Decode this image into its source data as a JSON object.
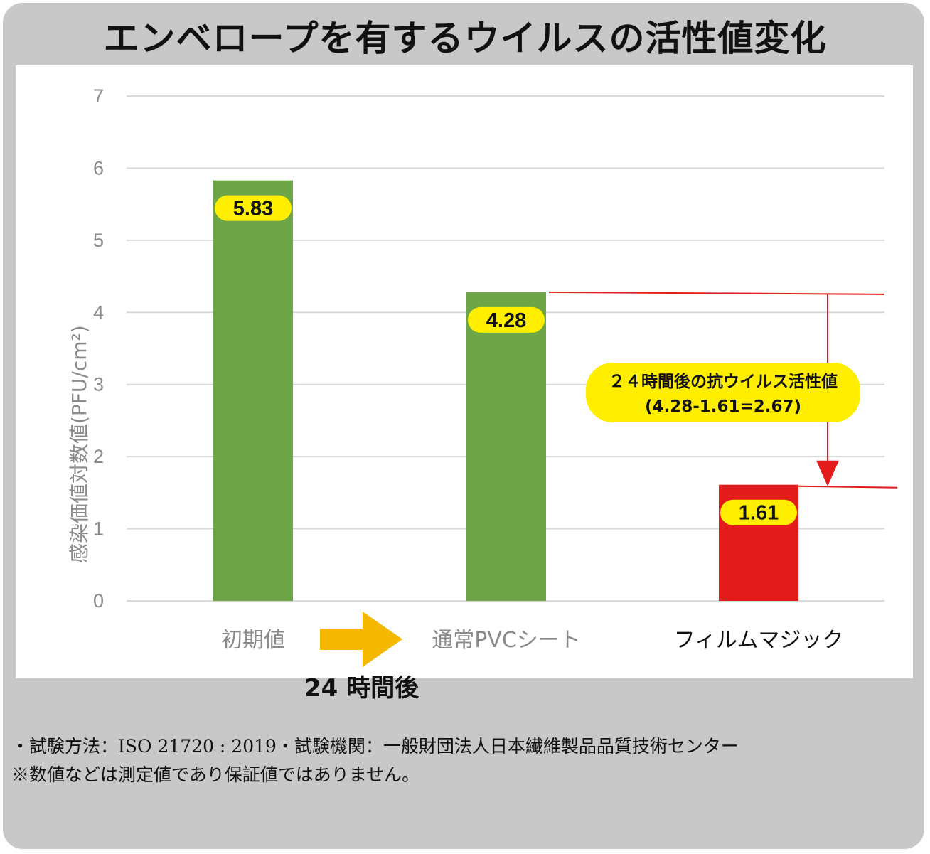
{
  "chart_data": {
    "type": "bar",
    "title": "エンベロープを有するウイルスの活性値変化",
    "ylabel": "感染価値対数値(PFU/cm²)",
    "ylim": [
      0,
      7
    ],
    "yticks": [
      "0",
      "1",
      "2",
      "3",
      "4",
      "5",
      "6",
      "7"
    ],
    "grid": true,
    "categories": [
      "初期値",
      "通常PVCシート",
      "フィルムマジック"
    ],
    "values": [
      5.83,
      4.28,
      1.61
    ],
    "value_labels": [
      "5.83",
      "4.28",
      "1.61"
    ],
    "bar_colors": [
      "#6ea647",
      "#6ea647",
      "#e31b1b"
    ],
    "annotations": {
      "time_label": "24 時間後",
      "difference_title": "２４時間後の抗ウイルス活性値",
      "difference_formula": "(4.28-1.61=2.67)",
      "difference_value": 2.67,
      "line_color": "#e31b1b",
      "highlight_color": "#ffee00",
      "arrow_color": "#f5b800"
    }
  },
  "footnotes": {
    "line1": "・試験方法：ISO 21720 : 2019・試験機関：一般財団法人日本繊維製品品質技術センター",
    "line2": "※数値などは測定値であり保証値ではありません。"
  }
}
